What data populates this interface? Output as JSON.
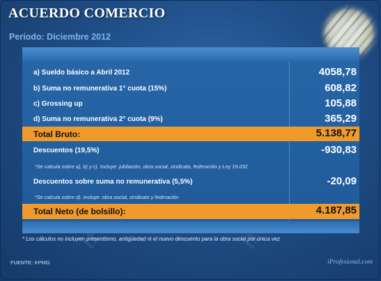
{
  "header": {
    "title": "ACUERDO COMERCIO",
    "period": "Período: Diciembre 2012"
  },
  "items": [
    {
      "label": "a) Sueldo básico a Abril 2012",
      "value": "4058,78"
    },
    {
      "label": "b) Suma no remunerativa 1° cuota (15%)",
      "value": "608,82"
    },
    {
      "label": "c) Grossing up",
      "value": "105,88"
    },
    {
      "label": "d) Suma no remunerativa 2° cuota (9%)",
      "value": "365,29"
    }
  ],
  "total_bruto": {
    "label": "Total Bruto:",
    "value": "5.138,77"
  },
  "descuentos": {
    "label": "Descuentos (19,5%)",
    "value": "-930,83",
    "note": "*Se calcula sobre a), b) y c). Incluye: jubilación, obra social, sindicato, federación y Ley 19.032"
  },
  "descuentos_no_rem": {
    "label": "Descuentos sobre suma no remunerativa (5,5%)",
    "value": "-20,09",
    "note": "*Se calcula sobre d). Incluye: obra social, sindicato y federación"
  },
  "total_neto": {
    "label": "Total Neto (de bolsillo):",
    "value": "4.187,85"
  },
  "footnote": "* Los cálculos no incluyen presentismo, antigüedad ni el nuevo descuento para la obra social por única vez",
  "source": {
    "label": "FUENTE:",
    "value": "KPMG"
  },
  "brand": "iProfesional.com",
  "colors": {
    "highlight": "#f09a2c",
    "panel": "#1f5a99",
    "background": "#1f4d86"
  }
}
